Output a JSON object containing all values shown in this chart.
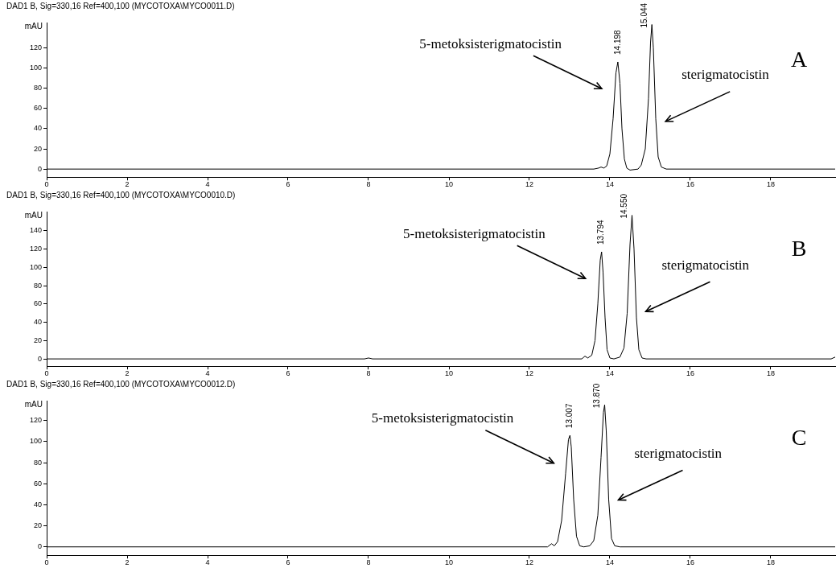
{
  "chart_data": [
    {
      "type": "line",
      "title": "DAD1 B, Sig=330,16 Ref=400,100 (MYCOTOXA\\MYCO0011.D)",
      "ylabel": "mAU",
      "color": "#000000",
      "x": [
        0,
        13.6,
        13.72,
        13.78,
        13.85,
        13.92,
        14.0,
        14.08,
        14.15,
        14.198,
        14.25,
        14.3,
        14.36,
        14.42,
        14.5,
        14.7,
        14.78,
        14.88,
        14.96,
        15.01,
        15.044,
        15.08,
        15.14,
        15.2,
        15.28,
        15.4,
        19.6
      ],
      "values": [
        0,
        0,
        1,
        2,
        1,
        3,
        15,
        50,
        95,
        106,
        85,
        40,
        10,
        1,
        -1,
        0,
        4,
        20,
        70,
        125,
        143,
        120,
        50,
        12,
        2,
        0,
        0
      ],
      "xlim": [
        0,
        19.6
      ],
      "xticks": [
        0,
        2,
        4,
        6,
        8,
        10,
        12,
        14,
        16,
        18
      ],
      "ylim": [
        -8,
        145
      ],
      "yticks": [
        0,
        20,
        40,
        60,
        80,
        100,
        120
      ],
      "grid": false,
      "legend": false,
      "annotations": [
        {
          "text": "14.198",
          "x": 14.198,
          "y": 106
        },
        {
          "text": "15.044",
          "x": 15.044,
          "y": 143
        },
        "5-metoksisterigmatocistin",
        "sterigmatocistin",
        "A"
      ]
    },
    {
      "type": "line",
      "title": "DAD1 B, Sig=330,16 Ref=400,100 (MYCOTOXA\\MYCO0010.D)",
      "ylabel": "mAU",
      "color": "#000000",
      "x": [
        0,
        7.9,
        8.0,
        8.1,
        13.3,
        13.38,
        13.45,
        13.55,
        13.63,
        13.7,
        13.76,
        13.794,
        13.83,
        13.88,
        13.93,
        14.0,
        14.1,
        14.25,
        14.35,
        14.43,
        14.5,
        14.55,
        14.6,
        14.66,
        14.72,
        14.8,
        14.9,
        19.5,
        19.6
      ],
      "values": [
        0,
        0,
        1,
        0,
        0,
        3,
        1,
        4,
        20,
        60,
        108,
        117,
        95,
        45,
        10,
        1,
        0,
        2,
        12,
        50,
        125,
        157,
        120,
        45,
        10,
        1,
        0,
        0,
        2
      ],
      "xlim": [
        0,
        19.6
      ],
      "xticks": [
        0,
        2,
        4,
        6,
        8,
        10,
        12,
        14,
        16,
        18
      ],
      "ylim": [
        -8,
        161
      ],
      "yticks": [
        0,
        20,
        40,
        60,
        80,
        100,
        120,
        140
      ],
      "grid": false,
      "legend": false,
      "annotations": [
        {
          "text": "13.794",
          "x": 13.794,
          "y": 117
        },
        {
          "text": "14.550",
          "x": 14.55,
          "y": 157
        },
        "5-metoksisterigmatocistin",
        "sterigmatocistin",
        "B"
      ]
    },
    {
      "type": "line",
      "title": "DAD1 B, Sig=330,16 Ref=400,100 (MYCOTOXA\\MYCO0012.D)",
      "ylabel": "mAU",
      "color": "#000000",
      "x": [
        0,
        12.45,
        12.55,
        12.62,
        12.7,
        12.8,
        12.9,
        12.97,
        13.007,
        13.04,
        13.1,
        13.17,
        13.25,
        13.35,
        13.5,
        13.6,
        13.7,
        13.78,
        13.84,
        13.87,
        13.91,
        13.97,
        14.04,
        14.12,
        14.25,
        19.6
      ],
      "values": [
        0,
        0,
        3,
        1,
        5,
        25,
        70,
        102,
        106,
        95,
        45,
        10,
        1,
        0,
        1,
        6,
        30,
        85,
        128,
        135,
        110,
        45,
        8,
        1,
        0,
        0
      ],
      "xlim": [
        0,
        19.6
      ],
      "xticks": [
        0,
        2,
        4,
        6,
        8,
        10,
        12,
        14,
        16,
        18
      ],
      "ylim": [
        -8,
        139
      ],
      "yticks": [
        0,
        20,
        40,
        60,
        80,
        100,
        120
      ],
      "grid": false,
      "legend": false,
      "annotations": [
        {
          "text": "13.007",
          "x": 13.007,
          "y": 106
        },
        {
          "text": "13.870",
          "x": 13.87,
          "y": 135
        },
        "5-metoksisterigmatocistin",
        "sterigmatocistin",
        "C"
      ]
    }
  ]
}
